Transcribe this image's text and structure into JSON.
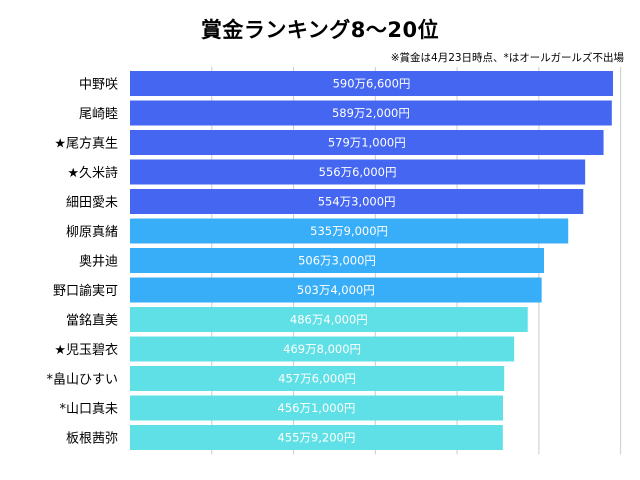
{
  "chart_data": {
    "type": "bar",
    "orientation": "horizontal",
    "title": "賞金ランキング8〜20位",
    "note": "※賞金は4月23日時点、*はオールガールズ不出場",
    "grid": true,
    "xlim": [
      0,
      610
    ],
    "unit": "万円",
    "categories": [
      "中野咲",
      "尾崎睦",
      "★尾方真生",
      "★久米詩",
      "細田愛未",
      "柳原真緒",
      "奥井迪",
      "野口諭実可",
      "當銘直美",
      "★児玉碧衣",
      "*畠山ひすい",
      "*山口真未",
      "板根茜弥"
    ],
    "values": [
      590.66,
      589.2,
      579.1,
      556.6,
      554.3,
      535.9,
      506.3,
      503.4,
      486.4,
      469.8,
      457.6,
      456.1,
      455.92
    ],
    "value_labels": [
      "590万6,600円",
      "589万2,000円",
      "579万1,000円",
      "556万6,000円",
      "554万3,000円",
      "535万9,000円",
      "506万3,000円",
      "503万4,000円",
      "486万4,000円",
      "469万8,000円",
      "457万6,000円",
      "456万1,000円",
      "455万9,200円"
    ],
    "colors": [
      "#4466f0",
      "#4466f0",
      "#4466f0",
      "#4466f0",
      "#4466f0",
      "#38aef8",
      "#38aef8",
      "#38aef8",
      "#5fe0e6",
      "#5fe0e6",
      "#5fe0e6",
      "#5fe0e6",
      "#5fe0e6"
    ]
  }
}
